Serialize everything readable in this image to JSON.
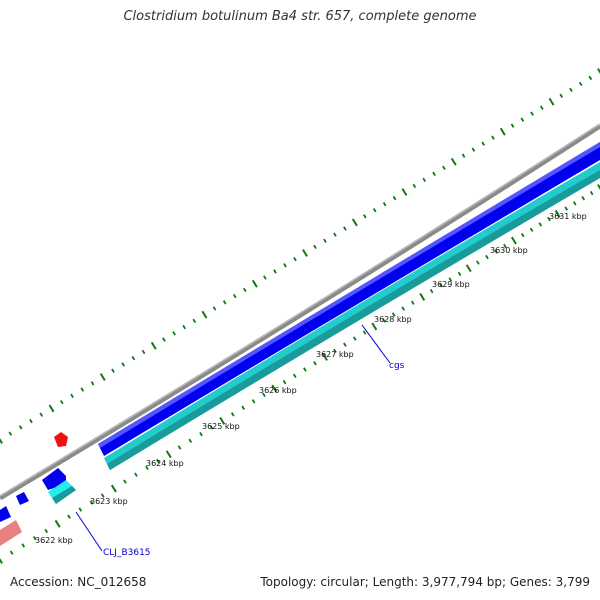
{
  "title": "Clostridium botulinum Ba4 str. 657, complete genome",
  "footer": {
    "accession": "Accession: NC_012658",
    "summary": "Topology: circular; Length: 3,977,794 bp; Genes: 3,799"
  },
  "ticks": [
    {
      "label": "3622 kbp"
    },
    {
      "label": "3623 kbp"
    },
    {
      "label": "3624 kbp"
    },
    {
      "label": "3625 kbp"
    },
    {
      "label": "3626 kbp"
    },
    {
      "label": "3627 kbp"
    },
    {
      "label": "3628 kbp"
    },
    {
      "label": "3629 kbp"
    },
    {
      "label": "3630 kbp"
    },
    {
      "label": "3631 kbp"
    }
  ],
  "gene_labels": [
    {
      "text": "cgs"
    },
    {
      "text": "CLJ_B3615"
    }
  ],
  "colors": {
    "backbone": "#8a8a8a",
    "forward_cds": "#0000ee",
    "reverse_cds": "#22cccc",
    "rna": "#ee1111",
    "pseudo": "#e88080",
    "tick": "#117711",
    "label_line": "#0000cc"
  }
}
